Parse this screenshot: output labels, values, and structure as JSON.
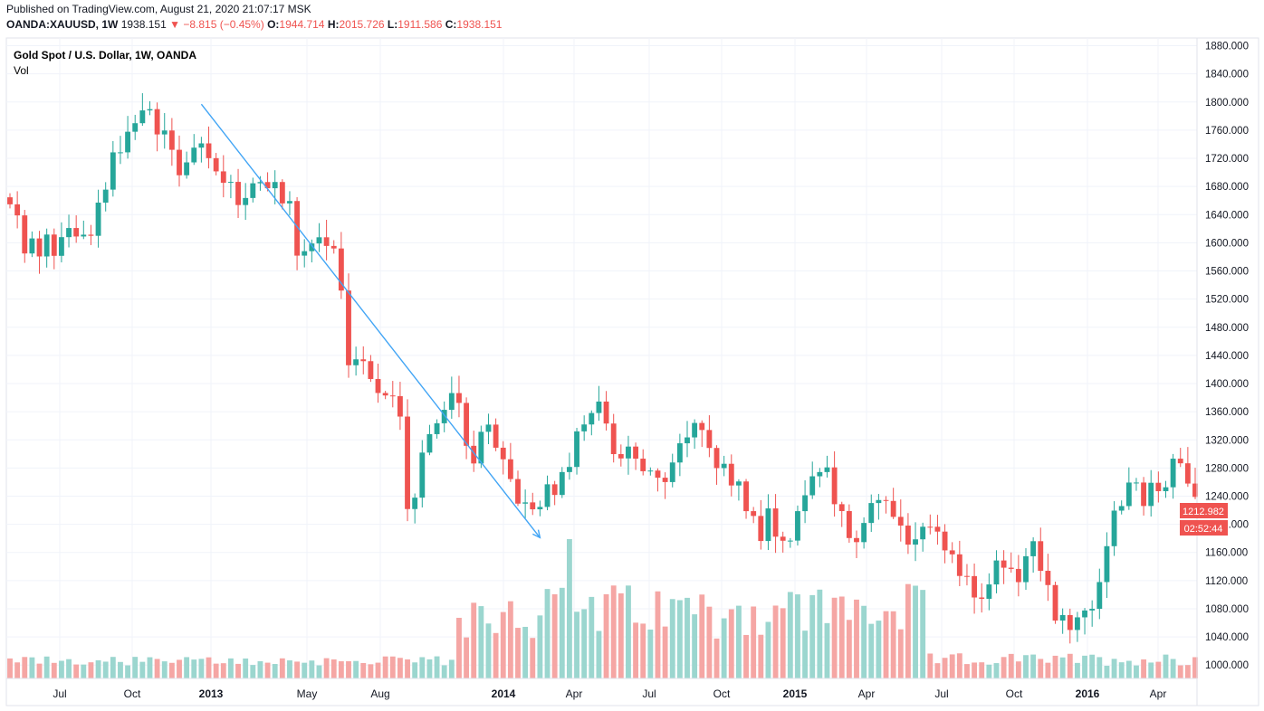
{
  "header": {
    "published": "Published on TradingView.com, August 21, 2020 21:07:17 MSK",
    "symbol": "OANDA:XAUUSD, 1W",
    "last": "1938.151",
    "arrow": "▼",
    "change": "−8.815 (−0.45%)",
    "o_label": "O:",
    "o_value": "1944.714",
    "h_label": "H:",
    "h_value": "2015.726",
    "l_label": "L:",
    "l_value": "1911.586",
    "c_label": "C:",
    "c_value": "1938.151"
  },
  "legend": {
    "title": "Gold Spot / U.S. Dollar, 1W, OANDA",
    "vol_label": "Vol"
  },
  "price_badge": "1212.982",
  "timer_badge": "02:52:44",
  "colors": {
    "up": "#26a69a",
    "down": "#ef5350",
    "up_vol": "#9bd6cf",
    "down_vol": "#f5a6a4",
    "arrow": "#42a5f5",
    "grid": "#f0f3fa"
  },
  "chart_data": {
    "type": "candlestick",
    "title": "Gold Spot / U.S. Dollar, 1W, OANDA",
    "y_ticks": [
      1000,
      1040,
      1080,
      1120,
      1160,
      1200,
      1240,
      1280,
      1320,
      1360,
      1400,
      1440,
      1480,
      1520,
      1560,
      1600,
      1640,
      1680,
      1720,
      1760,
      1800,
      1840,
      1880
    ],
    "y_tick_labels": [
      "1000.000",
      "1040.000",
      "1080.000",
      "1120.000",
      "1160.000",
      "1200.000",
      "1240.000",
      "1280.000",
      "1320.000",
      "1360.000",
      "1400.000",
      "1440.000",
      "1480.000",
      "1520.000",
      "1560.000",
      "1600.000",
      "1640.000",
      "1680.000",
      "1720.000",
      "1760.000",
      "1800.000",
      "1840.000",
      "1880.000"
    ],
    "ylim": [
      981,
      1891
    ],
    "x_labels": [
      {
        "label": "Jul",
        "bold": false
      },
      {
        "label": "Oct",
        "bold": false
      },
      {
        "label": "2013",
        "bold": true
      },
      {
        "label": "May",
        "bold": false
      },
      {
        "label": "Aug",
        "bold": false
      },
      {
        "label": "2014",
        "bold": true
      },
      {
        "label": "Apr",
        "bold": false
      },
      {
        "label": "Jul",
        "bold": false
      },
      {
        "label": "Oct",
        "bold": false
      },
      {
        "label": "2015",
        "bold": true
      },
      {
        "label": "Apr",
        "bold": false
      },
      {
        "label": "Jul",
        "bold": false
      },
      {
        "label": "Oct",
        "bold": false
      },
      {
        "label": "2016",
        "bold": true
      },
      {
        "label": "Apr",
        "bold": false
      }
    ],
    "anchors": [
      [
        1670,
        1650
      ],
      [
        1640,
        1580
      ],
      [
        1600,
        1570
      ],
      [
        1630,
        1590
      ],
      [
        1600,
        1620
      ],
      [
        1590,
        1600
      ],
      [
        1620,
        1630
      ],
      [
        1700,
        1720
      ],
      [
        1740,
        1770
      ],
      [
        1760,
        1775
      ],
      [
        1780,
        1770
      ],
      [
        1760,
        1730
      ],
      [
        1720,
        1700
      ],
      [
        1740,
        1740
      ],
      [
        1720,
        1710
      ],
      [
        1700,
        1690
      ],
      [
        1670,
        1660
      ],
      [
        1680,
        1690
      ],
      [
        1690,
        1680
      ],
      [
        1670,
        1660
      ],
      [
        1650,
        1590
      ],
      [
        1590,
        1580
      ],
      [
        1600,
        1610
      ],
      [
        1590,
        1560
      ],
      [
        1480,
        1420
      ],
      [
        1470,
        1430
      ],
      [
        1410,
        1380
      ],
      [
        1390,
        1380
      ],
      [
        1350,
        1220
      ],
      [
        1250,
        1300
      ],
      [
        1320,
        1330
      ],
      [
        1390,
        1400
      ],
      [
        1380,
        1310
      ],
      [
        1300,
        1330
      ],
      [
        1350,
        1320
      ],
      [
        1300,
        1260
      ],
      [
        1250,
        1230
      ],
      [
        1230,
        1210
      ],
      [
        1230,
        1250
      ],
      [
        1260,
        1270
      ],
      [
        1290,
        1330
      ],
      [
        1340,
        1360
      ],
      [
        1380,
        1340
      ],
      [
        1300,
        1290
      ],
      [
        1300,
        1290
      ],
      [
        1290,
        1280
      ],
      [
        1260,
        1250
      ],
      [
        1280,
        1300
      ],
      [
        1320,
        1330
      ],
      [
        1340,
        1320
      ],
      [
        1300,
        1290
      ],
      [
        1280,
        1250
      ],
      [
        1250,
        1220
      ],
      [
        1200,
        1180
      ],
      [
        1220,
        1200
      ],
      [
        1180,
        1160
      ],
      [
        1220,
        1240
      ],
      [
        1260,
        1290
      ],
      [
        1270,
        1240
      ],
      [
        1220,
        1200
      ],
      [
        1190,
        1180
      ],
      [
        1210,
        1220
      ],
      [
        1230,
        1220
      ],
      [
        1200,
        1190
      ],
      [
        1170,
        1190
      ],
      [
        1210,
        1200
      ],
      [
        1180,
        1160
      ],
      [
        1150,
        1130
      ],
      [
        1120,
        1080
      ],
      [
        1090,
        1110
      ],
      [
        1150,
        1160
      ],
      [
        1130,
        1110
      ],
      [
        1130,
        1160
      ],
      [
        1180,
        1140
      ],
      [
        1100,
        1070
      ],
      [
        1080,
        1060
      ],
      [
        1070,
        1060
      ],
      [
        1080,
        1100
      ],
      [
        1180,
        1200
      ],
      [
        1240,
        1260
      ],
      [
        1260,
        1230
      ],
      [
        1250,
        1240
      ],
      [
        1270,
        1290
      ],
      [
        1290,
        1270
      ],
      [
        1270,
        1250
      ]
    ],
    "candle_count": 162,
    "volume_range": [
      0,
      100
    ],
    "annotation": {
      "type": "arrow",
      "from": {
        "week": 26,
        "price": 1797
      },
      "to": {
        "week": 72,
        "price": 1181
      }
    }
  }
}
